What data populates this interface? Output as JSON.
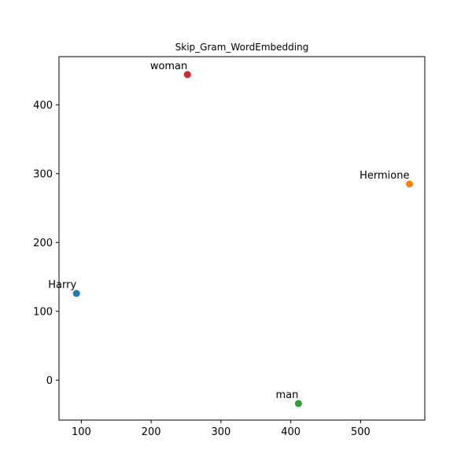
{
  "chart_data": {
    "type": "scatter",
    "title": "Skip_Gram_WordEmbedding",
    "xlabel": "",
    "ylabel": "",
    "xlim": [
      68,
      592
    ],
    "ylim": [
      -58,
      470
    ],
    "xticks": [
      100,
      200,
      300,
      400,
      500
    ],
    "yticks": [
      0,
      100,
      200,
      300,
      400
    ],
    "grid": false,
    "points": [
      {
        "label": "Harry",
        "x": 93,
        "y": 126,
        "color": "#1f77b4"
      },
      {
        "label": "Hermione",
        "x": 570,
        "y": 285,
        "color": "#ff7f0e"
      },
      {
        "label": "man",
        "x": 411,
        "y": -34,
        "color": "#2ca02c"
      },
      {
        "label": "woman",
        "x": 252,
        "y": 444,
        "color": "#d62728"
      }
    ]
  }
}
